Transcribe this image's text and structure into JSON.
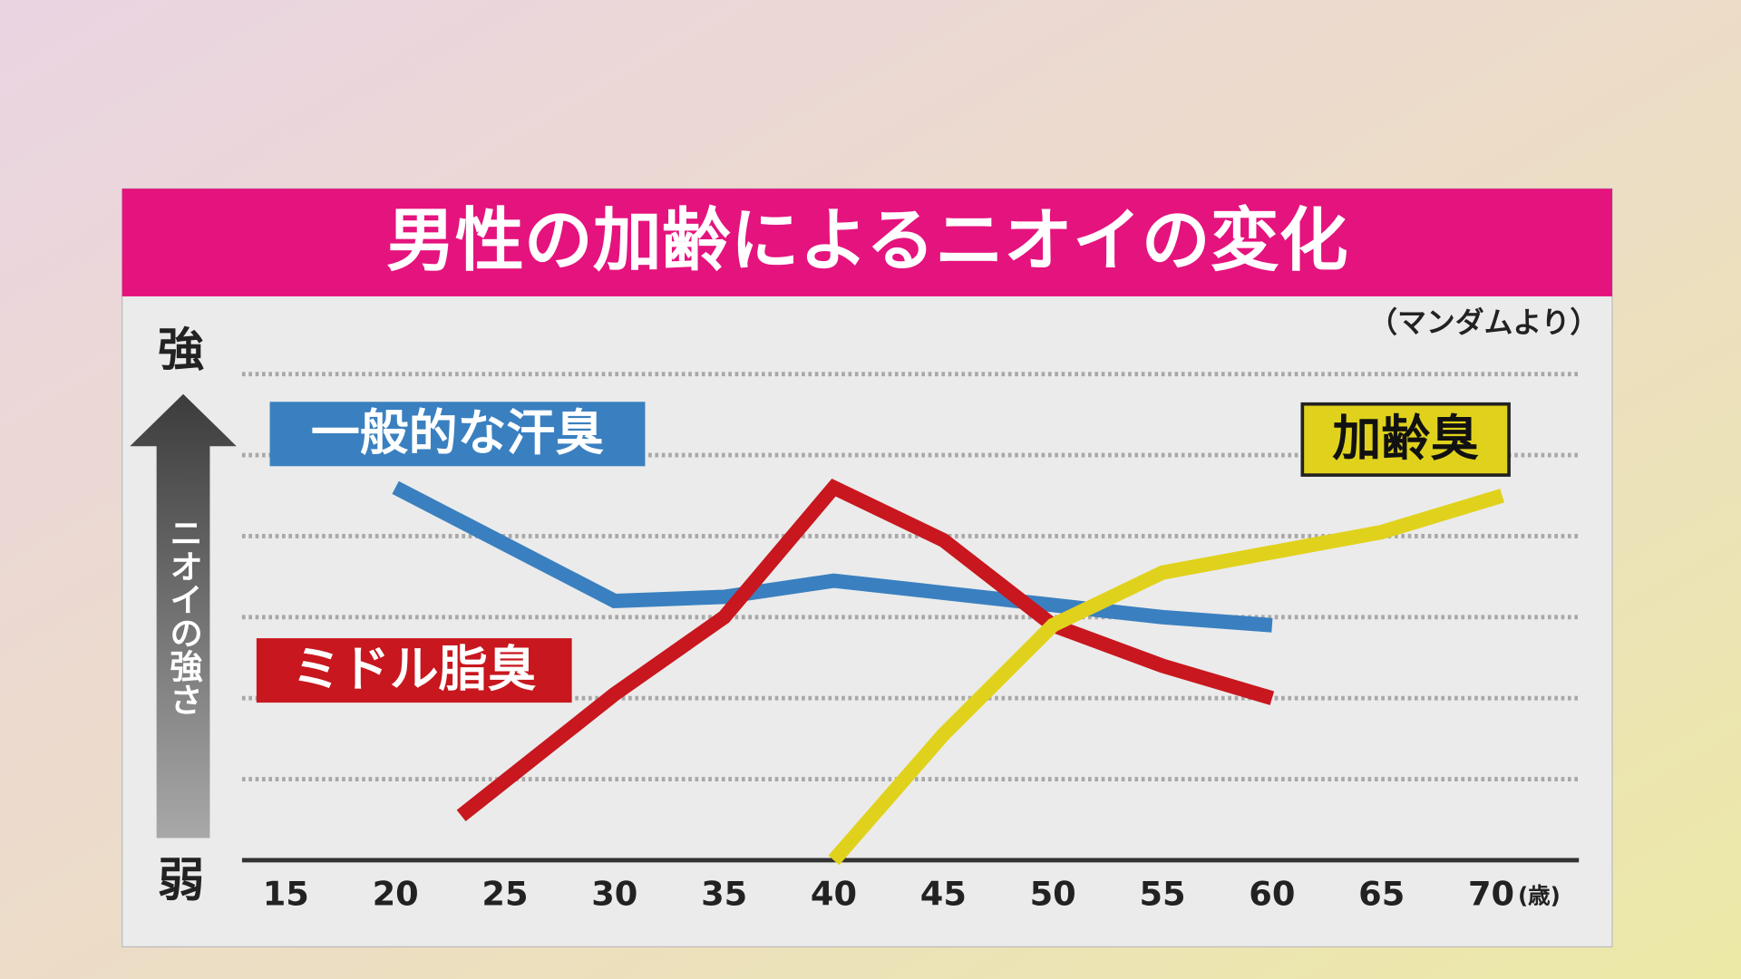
{
  "chart_data": {
    "type": "line",
    "title": "男性の加齢によるニオイの変化",
    "source": "（マンダムより）",
    "y_label": "ニオイの強さ",
    "y_high_label": "強",
    "y_low_label": "弱",
    "x_unit": "(歳)",
    "xlim": [
      13,
      74
    ],
    "xticks": [
      15,
      20,
      25,
      30,
      35,
      40,
      45,
      50,
      55,
      60,
      65,
      70
    ],
    "ylim": [
      0,
      6.5
    ],
    "yticks": [
      1,
      2,
      3,
      4,
      5,
      6
    ],
    "grid": true,
    "series": [
      {
        "name": "一般的な汗臭",
        "color": "#3a80c0",
        "x": [
          20,
          30,
          35,
          40,
          45,
          50,
          55,
          60
        ],
        "values": [
          4.6,
          3.2,
          3.25,
          3.45,
          3.3,
          3.15,
          3.0,
          2.9
        ]
      },
      {
        "name": "ミドル脂臭",
        "color": "#c8171e",
        "x": [
          23,
          30,
          35,
          40,
          45,
          50,
          55,
          60
        ],
        "values": [
          0.55,
          2.05,
          3.0,
          4.6,
          3.95,
          2.9,
          2.4,
          2.0
        ]
      },
      {
        "name": "加齢臭",
        "color": "#e0d21c",
        "x": [
          40,
          45,
          50,
          55,
          60,
          65,
          70.5
        ],
        "values": [
          0,
          1.55,
          2.9,
          3.55,
          3.8,
          4.05,
          4.5
        ]
      }
    ]
  }
}
